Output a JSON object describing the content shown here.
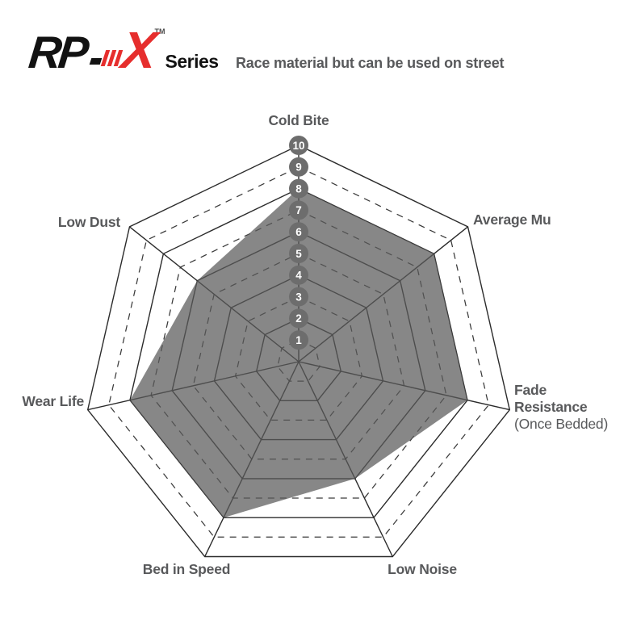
{
  "logo": {
    "rp": "RP",
    "x": "X",
    "tm": "TM",
    "series": "Series",
    "black": "#121212",
    "red": "#E62E2D"
  },
  "subtitle": "Race material but can be used on street",
  "chart_data": {
    "type": "radar",
    "title": "RP-X Series brake pad performance ratings",
    "categories": [
      "Cold Bite",
      "Average Mu",
      "Fade Resistance (Once Bedded)",
      "Low Noise",
      "Bed in Speed",
      "Wear Life",
      "Low Dust"
    ],
    "values": [
      8,
      8,
      8,
      6,
      8,
      8,
      6
    ],
    "scale_min": 1,
    "scale_max": 10,
    "scale_ticks": [
      "1",
      "2",
      "3",
      "4",
      "5",
      "6",
      "7",
      "8",
      "9",
      "10"
    ],
    "rings": 10,
    "ring_style": "even rings solid, odd rings dashed",
    "axes_count": 7,
    "start_axis": "top, clockwise",
    "fill_color": "#8a8a8a",
    "fill_rgba": "rgba(90,90,90,0.73)",
    "badge_color": "#6d6d6d",
    "badge_text_color": "#ffffff",
    "line_color": "#2b2b2b",
    "dash_line_color": "#3a3a3a",
    "label_color": "#58595B"
  },
  "axis_labels": {
    "cold_bite": "Cold Bite",
    "average_mu": "Average Mu",
    "fade_line1": "Fade",
    "fade_line2": "Resistance",
    "fade_note": "(Once Bedded)",
    "low_noise": "Low Noise",
    "bed_in_speed": "Bed in Speed",
    "wear_life": "Wear Life",
    "low_dust": "Low Dust"
  }
}
